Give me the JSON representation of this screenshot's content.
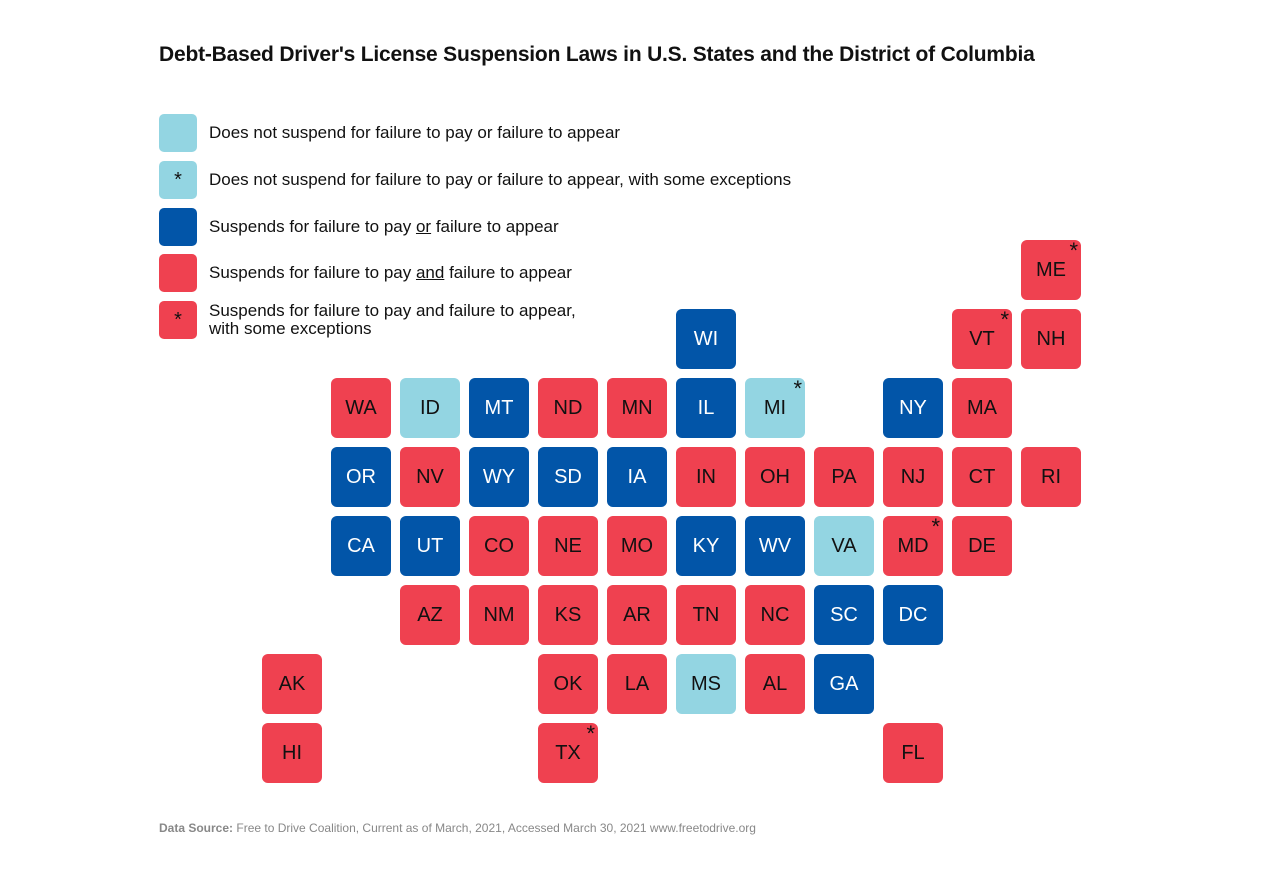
{
  "chart_data": {
    "type": "table",
    "title": "Debt-Based Driver's License Suspension Laws in U.S. States and the District of Columbia",
    "legend": [
      {
        "key": "none",
        "label": "Does not suspend for failure to pay or failure to appear",
        "color": "#93d5e2",
        "asterisk": false
      },
      {
        "key": "none_exc",
        "label": "Does not suspend for failure to pay or failure to appear, with some exceptions",
        "color": "#93d5e2",
        "asterisk": true
      },
      {
        "key": "or",
        "label": "Suspends for failure to pay or failure to appear",
        "color": "#0255a8",
        "asterisk": false
      },
      {
        "key": "and",
        "label": "Suspends for failure to pay and failure to appear",
        "color": "#ef4150",
        "asterisk": false
      },
      {
        "key": "and_exc",
        "label": "Suspends for failure to pay and failure to appear, with some exceptions",
        "color": "#ef4150",
        "asterisk": true
      }
    ],
    "states": [
      {
        "abbr": "ME",
        "category": "and_exc",
        "col": 11,
        "row": 0
      },
      {
        "abbr": "WI",
        "category": "or",
        "col": 6,
        "row": 1
      },
      {
        "abbr": "VT",
        "category": "and_exc",
        "col": 10,
        "row": 1
      },
      {
        "abbr": "NH",
        "category": "and",
        "col": 11,
        "row": 1
      },
      {
        "abbr": "WA",
        "category": "and",
        "col": 1,
        "row": 2
      },
      {
        "abbr": "ID",
        "category": "none",
        "col": 2,
        "row": 2
      },
      {
        "abbr": "MT",
        "category": "or",
        "col": 3,
        "row": 2
      },
      {
        "abbr": "ND",
        "category": "and",
        "col": 4,
        "row": 2
      },
      {
        "abbr": "MN",
        "category": "and",
        "col": 5,
        "row": 2
      },
      {
        "abbr": "IL",
        "category": "or",
        "col": 6,
        "row": 2
      },
      {
        "abbr": "MI",
        "category": "none_exc",
        "col": 7,
        "row": 2
      },
      {
        "abbr": "NY",
        "category": "or",
        "col": 9,
        "row": 2
      },
      {
        "abbr": "MA",
        "category": "and",
        "col": 10,
        "row": 2
      },
      {
        "abbr": "OR",
        "category": "or",
        "col": 1,
        "row": 3
      },
      {
        "abbr": "NV",
        "category": "and",
        "col": 2,
        "row": 3
      },
      {
        "abbr": "WY",
        "category": "or",
        "col": 3,
        "row": 3
      },
      {
        "abbr": "SD",
        "category": "or",
        "col": 4,
        "row": 3
      },
      {
        "abbr": "IA",
        "category": "or",
        "col": 5,
        "row": 3
      },
      {
        "abbr": "IN",
        "category": "and",
        "col": 6,
        "row": 3
      },
      {
        "abbr": "OH",
        "category": "and",
        "col": 7,
        "row": 3
      },
      {
        "abbr": "PA",
        "category": "and",
        "col": 8,
        "row": 3
      },
      {
        "abbr": "NJ",
        "category": "and",
        "col": 9,
        "row": 3
      },
      {
        "abbr": "CT",
        "category": "and",
        "col": 10,
        "row": 3
      },
      {
        "abbr": "RI",
        "category": "and",
        "col": 11,
        "row": 3
      },
      {
        "abbr": "CA",
        "category": "or",
        "col": 1,
        "row": 4
      },
      {
        "abbr": "UT",
        "category": "or",
        "col": 2,
        "row": 4
      },
      {
        "abbr": "CO",
        "category": "and",
        "col": 3,
        "row": 4
      },
      {
        "abbr": "NE",
        "category": "and",
        "col": 4,
        "row": 4
      },
      {
        "abbr": "MO",
        "category": "and",
        "col": 5,
        "row": 4
      },
      {
        "abbr": "KY",
        "category": "or",
        "col": 6,
        "row": 4
      },
      {
        "abbr": "WV",
        "category": "or",
        "col": 7,
        "row": 4
      },
      {
        "abbr": "VA",
        "category": "none",
        "col": 8,
        "row": 4
      },
      {
        "abbr": "MD",
        "category": "and_exc",
        "col": 9,
        "row": 4
      },
      {
        "abbr": "DE",
        "category": "and",
        "col": 10,
        "row": 4
      },
      {
        "abbr": "AZ",
        "category": "and",
        "col": 2,
        "row": 5
      },
      {
        "abbr": "NM",
        "category": "and",
        "col": 3,
        "row": 5
      },
      {
        "abbr": "KS",
        "category": "and",
        "col": 4,
        "row": 5
      },
      {
        "abbr": "AR",
        "category": "and",
        "col": 5,
        "row": 5
      },
      {
        "abbr": "TN",
        "category": "and",
        "col": 6,
        "row": 5
      },
      {
        "abbr": "NC",
        "category": "and",
        "col": 7,
        "row": 5
      },
      {
        "abbr": "SC",
        "category": "or",
        "col": 8,
        "row": 5
      },
      {
        "abbr": "DC",
        "category": "or",
        "col": 9,
        "row": 5
      },
      {
        "abbr": "AK",
        "category": "and",
        "col": 0,
        "row": 6
      },
      {
        "abbr": "OK",
        "category": "and",
        "col": 4,
        "row": 6
      },
      {
        "abbr": "LA",
        "category": "and",
        "col": 5,
        "row": 6
      },
      {
        "abbr": "MS",
        "category": "none",
        "col": 6,
        "row": 6
      },
      {
        "abbr": "AL",
        "category": "and",
        "col": 7,
        "row": 6
      },
      {
        "abbr": "GA",
        "category": "or",
        "col": 8,
        "row": 6
      },
      {
        "abbr": "HI",
        "category": "and",
        "col": 0,
        "row": 7
      },
      {
        "abbr": "TX",
        "category": "and_exc",
        "col": 4,
        "row": 7
      },
      {
        "abbr": "FL",
        "category": "and",
        "col": 9,
        "row": 7
      }
    ],
    "source": "Data Source: Free to Drive Coalition, Current as of March, 2021, Accessed March 30, 2021 www.freetodrive.org"
  },
  "header": {
    "title": "Debt-Based Driver's License Suspension Laws in U.S. States and the District of Columbia"
  },
  "legend": {
    "asterisk": "*",
    "item1": "Does not suspend for failure to pay or failure to appear",
    "item2": "Does not suspend for failure to pay or failure to appear, with some exceptions",
    "item3_pre": "Suspends for failure to pay ",
    "item3_u": "or",
    "item3_post": " failure to appear",
    "item4_pre": "Suspends for failure to pay ",
    "item4_u": "and",
    "item4_post": " failure to appear",
    "item5_line1": "Suspends for failure to pay and failure to appear,",
    "item5_line2": "with some exceptions"
  },
  "footer": {
    "source_label": "Data Source:",
    "source_text": " Free to Drive Coalition, Current as of March, 2021, Accessed March 30, 2021 www.freetodrive.org"
  }
}
